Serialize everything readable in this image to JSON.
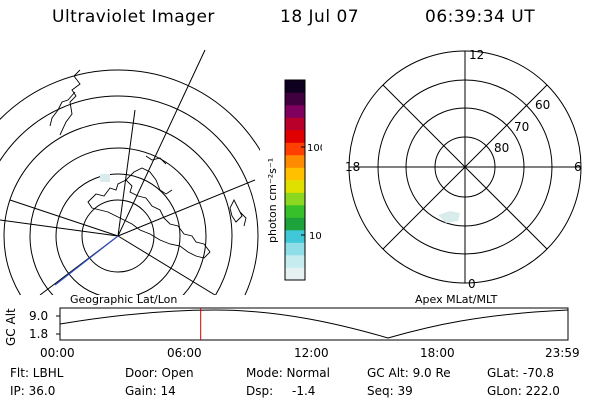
{
  "header": {
    "instrument": "Ultraviolet Imager",
    "date": "18 Jul 07",
    "time": "06:39:34 UT"
  },
  "geo_panel": {
    "label": "Geographic Lat/Lon"
  },
  "mag_panel": {
    "label": "Apex MLat/MLT",
    "mlt_labels": {
      "top": "12",
      "left": "18",
      "right": "6",
      "bottom": "0"
    },
    "lat_labels": [
      "60",
      "70",
      "80"
    ]
  },
  "colorbar": {
    "unit_label": "photon cm⁻²s⁻¹",
    "tick_100": "100",
    "tick_10": "10",
    "colors": [
      "#e6f2f2",
      "#c7ecf0",
      "#8fdde6",
      "#40c8d8",
      "#1ea33c",
      "#38c02a",
      "#8cd820",
      "#e0e000",
      "#ffc000",
      "#ff8c00",
      "#ff4000",
      "#e00000",
      "#b8002a",
      "#800060",
      "#400040",
      "#100020"
    ]
  },
  "altitude_plot": {
    "axis_label": "GC Alt",
    "y_ticks": [
      "9.0",
      "1.8"
    ],
    "x_ticks": [
      "00:00",
      "06:00",
      "12:00",
      "18:00",
      "23:59"
    ],
    "current_time_fraction": 0.277
  },
  "footer": {
    "row1": {
      "filter": "Flt: LBHL",
      "door": "Door: Open",
      "mode": "Mode: Normal",
      "gc_alt": "GC Alt: 9.0 Re",
      "glat": "GLat: -70.8"
    },
    "row2": {
      "ip": "IP: 36.0",
      "gain": "Gain: 14",
      "dsp_label": "Dsp:",
      "dsp_value": "-1.4",
      "seq": "Seq: 39",
      "glon": "GLon: 222.0"
    }
  },
  "colors": {
    "foreground": "#000000",
    "background": "#ffffff",
    "time_marker": "#d00000",
    "track_line": "#3050c0"
  }
}
